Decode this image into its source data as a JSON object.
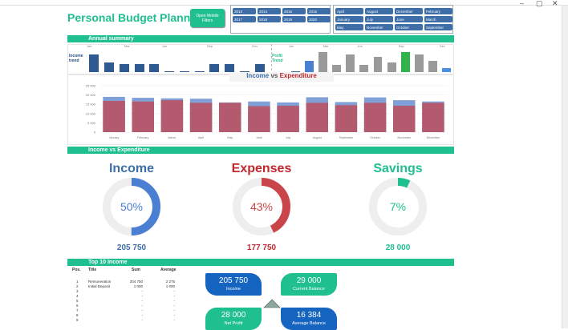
{
  "app": {
    "title": "Personal Budget Planner",
    "filters_button": "Open Mobile Filters"
  },
  "years": [
    "2013",
    "2014",
    "2015",
    "2016",
    "2017",
    "2018",
    "2019",
    "2020"
  ],
  "months": [
    "April",
    "August",
    "December",
    "February",
    "January",
    "July",
    "June",
    "March",
    "May",
    "November",
    "October",
    "September"
  ],
  "sections": {
    "annual_summary": "Annual summary",
    "income_vs_expenditure": "Income vs Expenditure",
    "top10": "Top 10 Income"
  },
  "trend": {
    "income_label_1": "Income",
    "income_label_2": "trend",
    "profit_label_1": "Profit",
    "profit_label_2": "Trend",
    "month_ticks_left": [
      "Jan",
      "Mar",
      "Jun",
      "Sep",
      "Dec"
    ],
    "month_ticks_right": [
      "Jan",
      "Mar",
      "Jun",
      "Sep",
      "Dec"
    ],
    "income_values": [
      0.85,
      0.45,
      0.37,
      0.38,
      0.38,
      0.05,
      0.05,
      0.05,
      0.38,
      0.38,
      0.05,
      0.38
    ],
    "profit_values": [
      0.05,
      0.55,
      0.95,
      0.35,
      0.85,
      0.35,
      0.75,
      0.45,
      0.95,
      0.85,
      0.55,
      0.2
    ],
    "profit_colors": [
      "#3d6ea8",
      "#4a7fd1",
      "#9a9a9a",
      "#9a9a9a",
      "#9a9a9a",
      "#9a9a9a",
      "#9a9a9a",
      "#9a9a9a",
      "#2fb34a",
      "#9a9a9a",
      "#9a9a9a",
      "#4a90e2"
    ]
  },
  "chart_data": {
    "type": "bar",
    "title_part1": "Income",
    "title_mid": " vs ",
    "title_part2": "Expenditure",
    "categories": [
      "January",
      "February",
      "March",
      "April",
      "May",
      "June",
      "July",
      "August",
      "September",
      "October",
      "November",
      "December"
    ],
    "series": [
      {
        "name": "Income",
        "values": [
          19000,
          18500,
          18200,
          18000,
          16000,
          16500,
          16000,
          18800,
          16200,
          18700,
          17200,
          16500
        ],
        "color": "#7f9fd6"
      },
      {
        "name": "Expenditure",
        "values": [
          16800,
          16500,
          17200,
          15800,
          15800,
          14000,
          14200,
          15800,
          14500,
          15800,
          14200,
          15800
        ],
        "color": "#b35a6e"
      }
    ],
    "yticks": [
      "25 000",
      "20 000",
      "15 000",
      "10 000",
      "5 000",
      "0"
    ],
    "ylim": [
      0,
      25000
    ]
  },
  "gauges": [
    {
      "title": "Income",
      "percent_label": "50%",
      "percent": 0.5,
      "value": "205 750",
      "color": "#4a7fd1",
      "title_color": "#3d6ea8"
    },
    {
      "title": "Expenses",
      "percent_label": "43%",
      "percent": 0.43,
      "value": "177 750",
      "color": "#c9454a",
      "title_color": "#c0272d"
    },
    {
      "title": "Savings",
      "percent_label": "7%",
      "percent": 0.07,
      "value": "28 000",
      "color": "#1fbf8f",
      "title_color": "#1fbf8f"
    }
  ],
  "top10": {
    "headers": [
      "Pos.",
      "Title",
      "Sum",
      "Average"
    ],
    "rows": [
      [
        "1",
        "Remuneration",
        "204 750",
        "2 275"
      ],
      [
        "2",
        "Initial Deposit",
        "1 000",
        "1 000"
      ],
      [
        "3",
        "",
        "-",
        "-"
      ],
      [
        "4",
        "",
        "-",
        "-"
      ],
      [
        "5",
        "",
        "-",
        "-"
      ],
      [
        "6",
        "",
        "-",
        "-"
      ],
      [
        "7",
        "",
        "-",
        "-"
      ],
      [
        "8",
        "",
        "-",
        "-"
      ],
      [
        "9",
        "",
        "-",
        "-"
      ]
    ]
  },
  "cards": [
    {
      "value": "205 750",
      "label": "Income",
      "color": "#1565c0"
    },
    {
      "value": "29 000",
      "label": "Current Balance",
      "color": "#1fbf8f"
    },
    {
      "value": "28 000",
      "label": "Net Profit",
      "color": "#1fbf8f"
    },
    {
      "value": "16 384",
      "label": "Average Balance",
      "color": "#1565c0"
    }
  ]
}
